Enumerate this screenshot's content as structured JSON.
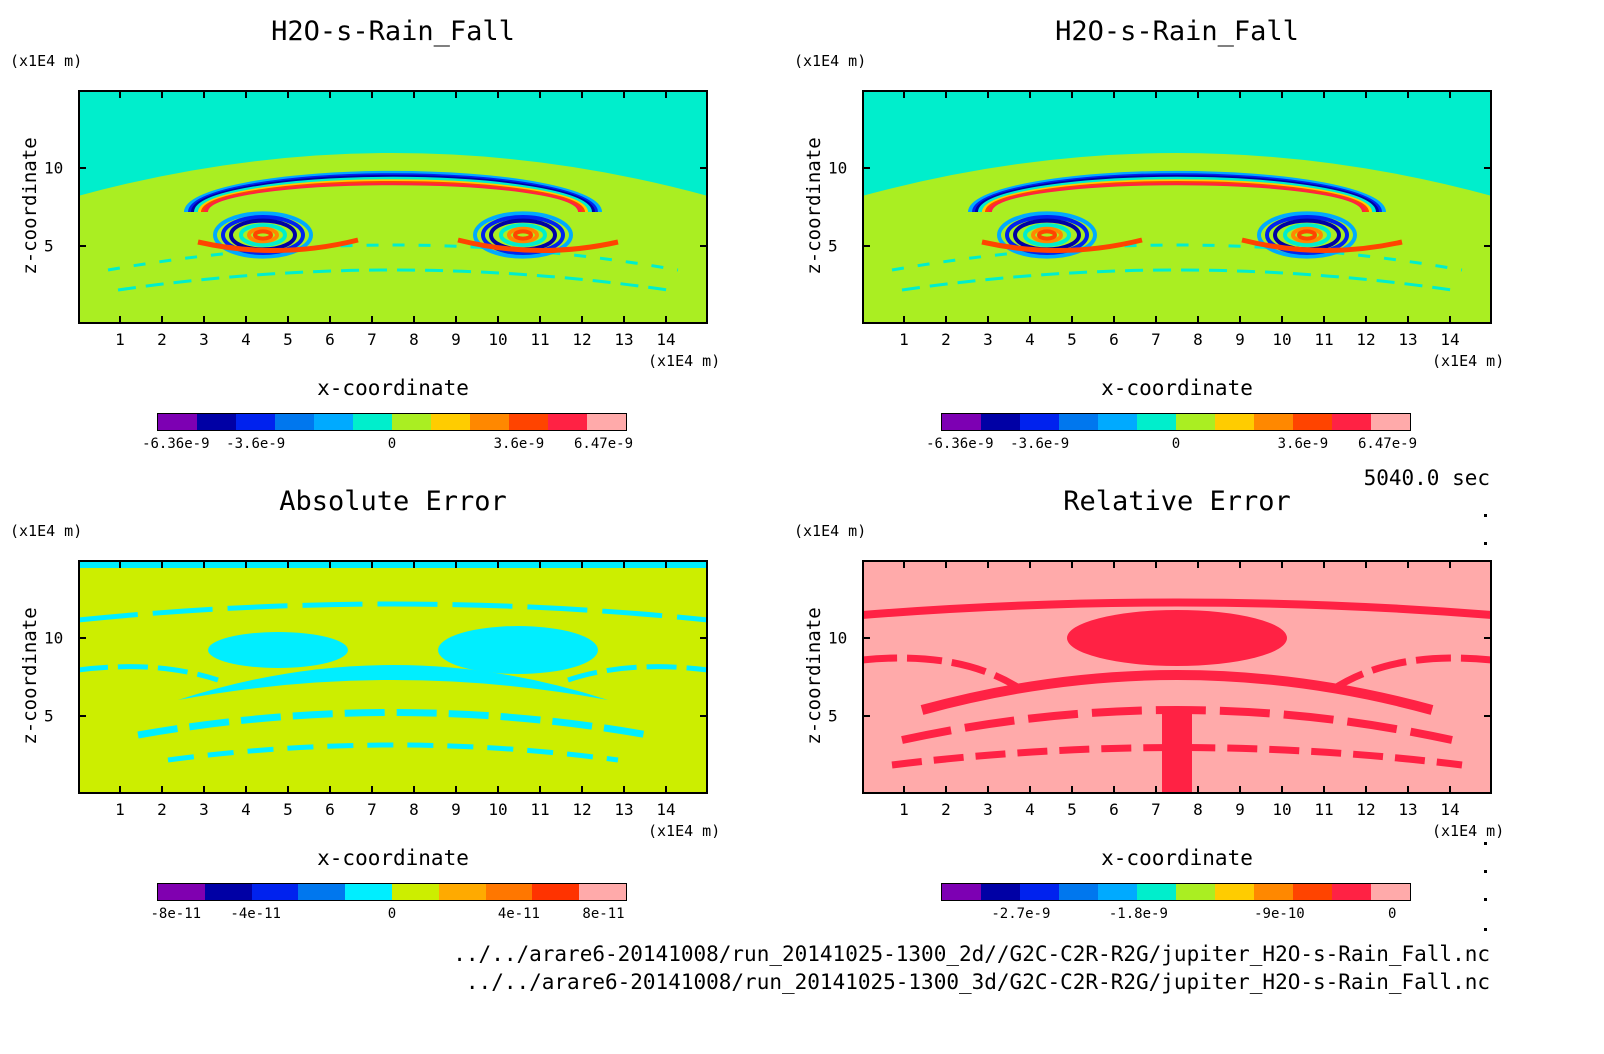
{
  "chart_data": [
    {
      "type": "heatmap",
      "title": "H2O-s-Rain_Fall",
      "xlabel": "x-coordinate",
      "ylabel": "z-coordinate",
      "x_unit": "(x1E4 m)",
      "y_unit": "(x1E4 m)",
      "xticks": [
        "1",
        "2",
        "3",
        "4",
        "5",
        "6",
        "7",
        "8",
        "9",
        "10",
        "11",
        "12",
        "13",
        "14"
      ],
      "yticks": [
        "5",
        "10"
      ],
      "xlim": [
        0,
        15
      ],
      "ylim": [
        0,
        15
      ],
      "colorbar": {
        "colors": [
          "#7d00b3",
          "#0000a5",
          "#0022ee",
          "#0077ee",
          "#00aaff",
          "#00eecc",
          "#aaee22",
          "#ffcc00",
          "#ff8800",
          "#ff4400",
          "#ff2244",
          "#ffaaaa"
        ],
        "tick_labels": [
          "-6.36e-9",
          "-3.6e-9",
          "0",
          "3.6e-9",
          "6.47e-9"
        ]
      }
    },
    {
      "type": "heatmap",
      "title": "H2O-s-Rain_Fall",
      "xlabel": "x-coordinate",
      "ylabel": "z-coordinate",
      "x_unit": "(x1E4 m)",
      "y_unit": "(x1E4 m)",
      "xticks": [
        "1",
        "2",
        "3",
        "4",
        "5",
        "6",
        "7",
        "8",
        "9",
        "10",
        "11",
        "12",
        "13",
        "14"
      ],
      "yticks": [
        "5",
        "10"
      ],
      "xlim": [
        0,
        15
      ],
      "ylim": [
        0,
        15
      ],
      "colorbar": {
        "colors": [
          "#7d00b3",
          "#0000a5",
          "#0022ee",
          "#0077ee",
          "#00aaff",
          "#00eecc",
          "#aaee22",
          "#ffcc00",
          "#ff8800",
          "#ff4400",
          "#ff2244",
          "#ffaaaa"
        ],
        "tick_labels": [
          "-6.36e-9",
          "-3.6e-9",
          "0",
          "3.6e-9",
          "6.47e-9"
        ]
      }
    },
    {
      "type": "heatmap",
      "title": "Absolute Error",
      "xlabel": "x-coordinate",
      "ylabel": "z-coordinate",
      "x_unit": "(x1E4 m)",
      "y_unit": "(x1E4 m)",
      "xticks": [
        "1",
        "2",
        "3",
        "4",
        "5",
        "6",
        "7",
        "8",
        "9",
        "10",
        "11",
        "12",
        "13",
        "14"
      ],
      "yticks": [
        "5",
        "10"
      ],
      "xlim": [
        0,
        15
      ],
      "ylim": [
        0,
        15
      ],
      "colorbar": {
        "colors": [
          "#8000b0",
          "#0000a5",
          "#0022ee",
          "#0077ee",
          "#00eeff",
          "#ccee00",
          "#ffaa00",
          "#ff7700",
          "#ff3300",
          "#ffaaaa"
        ],
        "tick_labels": [
          "-8e-11",
          "-4e-11",
          "0",
          "4e-11",
          "8e-11"
        ]
      }
    },
    {
      "type": "heatmap",
      "title": "Relative Error",
      "xlabel": "x-coordinate",
      "ylabel": "z-coordinate",
      "x_unit": "(x1E4 m)",
      "y_unit": "(x1E4 m)",
      "xticks": [
        "1",
        "2",
        "3",
        "4",
        "5",
        "6",
        "7",
        "8",
        "9",
        "10",
        "11",
        "12",
        "13",
        "14"
      ],
      "yticks": [
        "5",
        "10"
      ],
      "xlim": [
        0,
        15
      ],
      "ylim": [
        0,
        15
      ],
      "colorbar": {
        "colors": [
          "#7d00b3",
          "#0000a5",
          "#0022ee",
          "#0077ee",
          "#00aaff",
          "#00eecc",
          "#aaee22",
          "#ffcc00",
          "#ff8800",
          "#ff4400",
          "#ff2244",
          "#ffaaaa"
        ],
        "tick_labels": [
          "-2.7e-9",
          "-1.8e-9",
          "-9e-10",
          "0"
        ]
      }
    }
  ],
  "footer": {
    "timestamp": "5040.0 sec",
    "path_2d": "../../arare6-20141008/run_20141025-1300_2d//G2C-C2R-R2G/jupiter_H2O-s-Rain_Fall.nc",
    "path_3d": "../../arare6-20141008/run_20141025-1300_3d/G2C-C2R-R2G/jupiter_H2O-s-Rain_Fall.nc"
  }
}
